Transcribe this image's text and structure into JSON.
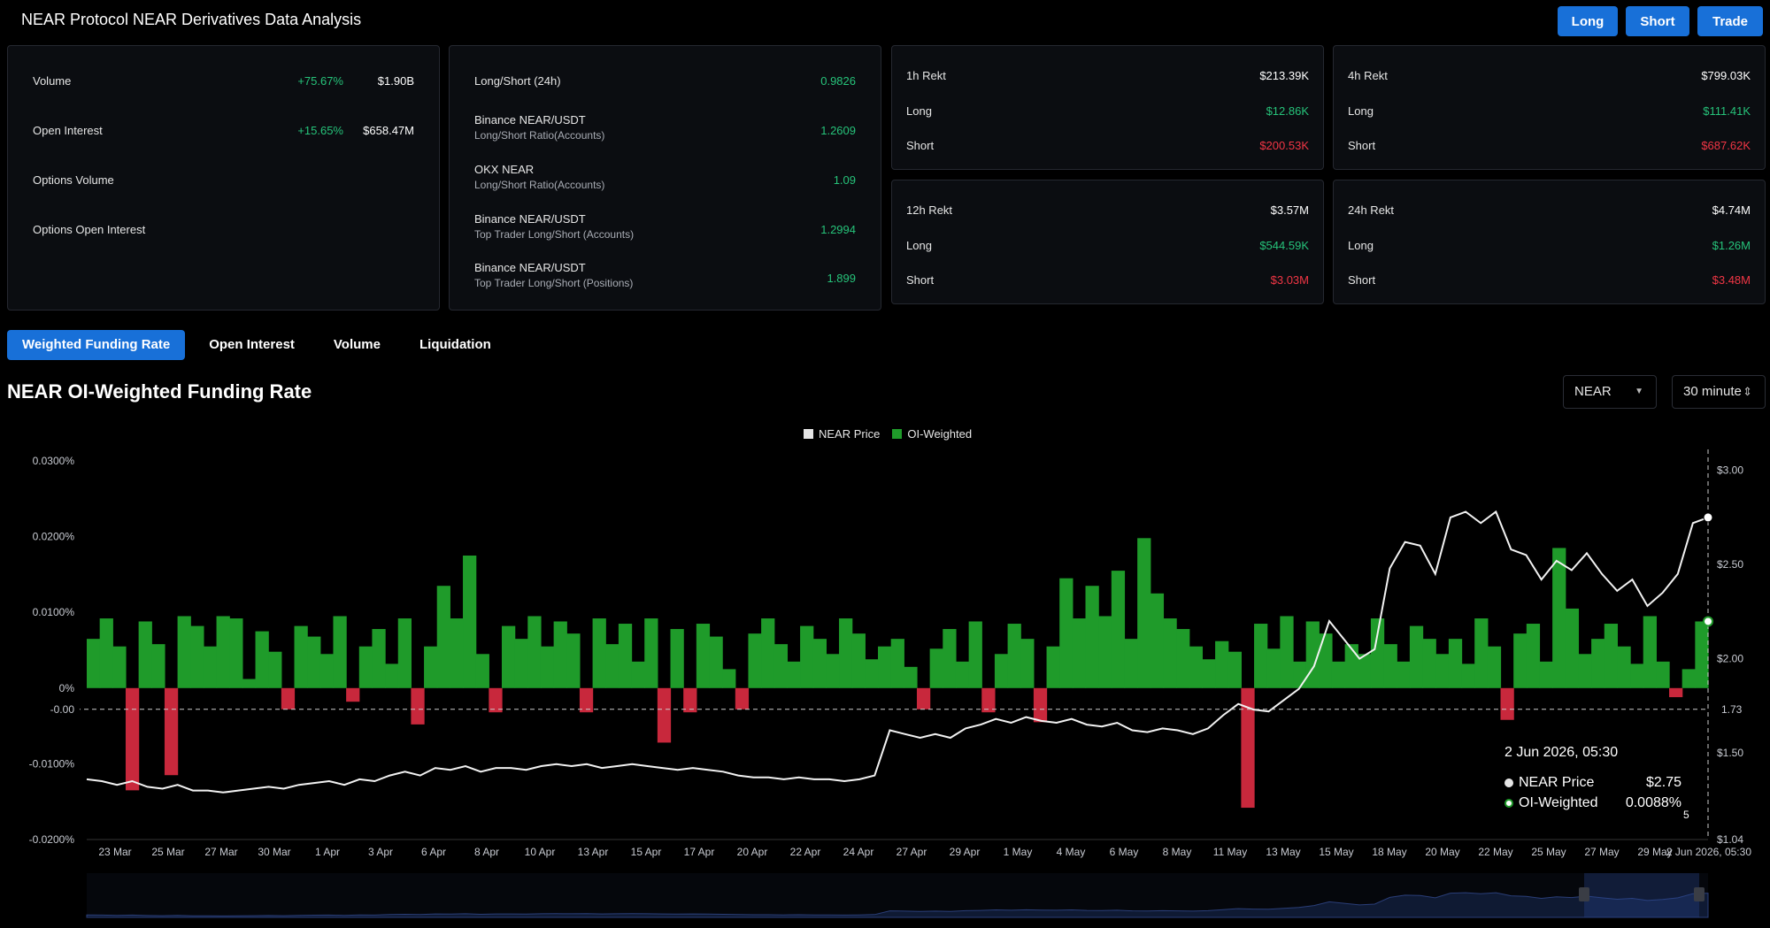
{
  "page": {
    "title": "NEAR Protocol NEAR Derivatives Data Analysis"
  },
  "actions": {
    "long": "Long",
    "short": "Short",
    "trade": "Trade"
  },
  "market": {
    "rows": [
      {
        "label": "Volume",
        "change": "+75.67%",
        "value": "$1.90B"
      },
      {
        "label": "Open Interest",
        "change": "+15.65%",
        "value": "$658.47M"
      },
      {
        "label": "Options Volume",
        "change": "",
        "value": ""
      },
      {
        "label": "Options Open Interest",
        "change": "",
        "value": ""
      }
    ]
  },
  "ratios": {
    "rows": [
      {
        "label": "Long/Short (24h)",
        "sub": "",
        "value": "0.9826"
      },
      {
        "label": "Binance NEAR/USDT",
        "sub": "Long/Short Ratio(Accounts)",
        "value": "1.2609"
      },
      {
        "label": "OKX NEAR",
        "sub": "Long/Short Ratio(Accounts)",
        "value": "1.09"
      },
      {
        "label": "Binance NEAR/USDT",
        "sub": "Top Trader Long/Short (Accounts)",
        "value": "1.2994"
      },
      {
        "label": "Binance NEAR/USDT",
        "sub": "Top Trader Long/Short (Positions)",
        "value": "1.899"
      }
    ]
  },
  "rekt": [
    {
      "title": "1h Rekt",
      "total": "$213.39K",
      "long_label": "Long",
      "long": "$12.86K",
      "short_label": "Short",
      "short": "$200.53K"
    },
    {
      "title": "4h Rekt",
      "total": "$799.03K",
      "long_label": "Long",
      "long": "$111.41K",
      "short_label": "Short",
      "short": "$687.62K"
    },
    {
      "title": "12h Rekt",
      "total": "$3.57M",
      "long_label": "Long",
      "long": "$544.59K",
      "short_label": "Short",
      "short": "$3.03M"
    },
    {
      "title": "24h Rekt",
      "total": "$4.74M",
      "long_label": "Long",
      "long": "$1.26M",
      "short_label": "Short",
      "short": "$3.48M"
    }
  ],
  "tabs": [
    "Weighted Funding Rate",
    "Open Interest",
    "Volume",
    "Liquidation"
  ],
  "chart_title": "NEAR OI-Weighted Funding Rate",
  "controls": {
    "coin": "NEAR",
    "interval": "30 minute"
  },
  "colors": {
    "accent": "#1870d8",
    "positive": "#26c37a",
    "negative": "#f23645",
    "bar_green": "#1f9b2a",
    "bar_red": "#c8283c"
  },
  "icons": {
    "select_arrow": "caret-down-icon",
    "spinner": "updown-icon"
  },
  "crosshair": {
    "left_value": "-0.00",
    "right_value": "1.73"
  },
  "tooltip": {
    "date": "2 Jun 2026, 05:30",
    "price_label": "NEAR Price",
    "price_value": "$2.75",
    "rate_label": "OI-Weighted",
    "rate_value": "0.0088%"
  },
  "stray_text": "5",
  "chart_data": {
    "type": "area",
    "legend": [
      "NEAR Price",
      "OI-Weighted"
    ],
    "legend_position": "top-center",
    "x_labels": [
      "23 Mar",
      "25 Mar",
      "27 Mar",
      "30 Mar",
      "1 Apr",
      "3 Apr",
      "6 Apr",
      "8 Apr",
      "10 Apr",
      "13 Apr",
      "15 Apr",
      "17 Apr",
      "20 Apr",
      "22 Apr",
      "24 Apr",
      "27 Apr",
      "29 Apr",
      "1 May",
      "4 May",
      "6 May",
      "8 May",
      "11 May",
      "13 May",
      "15 May",
      "18 May",
      "20 May",
      "22 May",
      "25 May",
      "27 May",
      "29 May",
      "2 Jun 2026, 05:30"
    ],
    "y_left_ticks": [
      "0.0300%",
      "0.0200%",
      "0.0100%",
      "0%",
      "-0.0100%",
      "-0.0200%"
    ],
    "y_right_ticks": [
      "$3.00",
      "$2.50",
      "$2.00",
      "$1.50",
      "$1.04"
    ],
    "y_left_range": [
      -0.02,
      0.03
    ],
    "y_right_range": [
      1.04,
      3.05
    ],
    "grid": false,
    "series": [
      {
        "name": "OI-Weighted",
        "unit": "%",
        "values": [
          0.0065,
          0.0092,
          0.0055,
          -0.0135,
          0.0088,
          0.0058,
          -0.0115,
          0.0095,
          0.0082,
          0.0055,
          0.0095,
          0.0092,
          0.0012,
          0.0075,
          0.0048,
          -0.0028,
          0.0082,
          0.0068,
          0.0045,
          0.0095,
          -0.0018,
          0.0055,
          0.0078,
          0.0032,
          0.0092,
          -0.0048,
          0.0055,
          0.0135,
          0.0092,
          0.0175,
          0.0045,
          -0.0032,
          0.0082,
          0.0065,
          0.0095,
          0.0055,
          0.0088,
          0.0072,
          -0.0032,
          0.0092,
          0.0058,
          0.0085,
          0.0035,
          0.0092,
          -0.0072,
          0.0078,
          -0.0032,
          0.0085,
          0.0068,
          0.0025,
          -0.0028,
          0.0072,
          0.0092,
          0.0058,
          0.0035,
          0.0082,
          0.0065,
          0.0045,
          0.0092,
          0.0072,
          0.0038,
          0.0055,
          0.0065,
          0.0028,
          -0.0028,
          0.0052,
          0.0078,
          0.0035,
          0.0088,
          -0.0032,
          0.0045,
          0.0085,
          0.0065,
          -0.0045,
          0.0055,
          0.0145,
          0.0092,
          0.0135,
          0.0095,
          0.0155,
          0.0065,
          0.0198,
          0.0125,
          0.0092,
          0.0078,
          0.0055,
          0.0038,
          0.0062,
          0.0048,
          -0.0158,
          0.0085,
          0.0052,
          0.0095,
          0.0035,
          0.0088,
          0.0072,
          0.0035,
          0.0058,
          0.0045,
          0.0092,
          0.0058,
          0.0035,
          0.0082,
          0.0065,
          0.0045,
          0.0065,
          0.0032,
          0.0092,
          0.0055,
          -0.0042,
          0.0072,
          0.0085,
          0.0035,
          0.0185,
          0.0105,
          0.0045,
          0.0065,
          0.0085,
          0.0055,
          0.0032,
          0.0095,
          0.0035,
          -0.0012,
          0.0025,
          0.0088
        ]
      },
      {
        "name": "NEAR Price",
        "unit": "$",
        "values": [
          1.36,
          1.35,
          1.33,
          1.35,
          1.32,
          1.31,
          1.33,
          1.3,
          1.3,
          1.29,
          1.3,
          1.31,
          1.32,
          1.31,
          1.33,
          1.34,
          1.35,
          1.33,
          1.36,
          1.35,
          1.38,
          1.4,
          1.38,
          1.42,
          1.41,
          1.43,
          1.4,
          1.42,
          1.42,
          1.41,
          1.43,
          1.44,
          1.43,
          1.44,
          1.42,
          1.43,
          1.44,
          1.43,
          1.42,
          1.41,
          1.42,
          1.41,
          1.4,
          1.38,
          1.37,
          1.37,
          1.36,
          1.37,
          1.36,
          1.36,
          1.35,
          1.36,
          1.38,
          1.62,
          1.6,
          1.58,
          1.6,
          1.58,
          1.63,
          1.65,
          1.68,
          1.66,
          1.69,
          1.67,
          1.66,
          1.68,
          1.65,
          1.64,
          1.66,
          1.62,
          1.61,
          1.63,
          1.62,
          1.6,
          1.63,
          1.7,
          1.76,
          1.73,
          1.72,
          1.78,
          1.84,
          1.96,
          2.2,
          2.1,
          2.0,
          2.05,
          2.48,
          2.62,
          2.6,
          2.45,
          2.75,
          2.78,
          2.72,
          2.78,
          2.58,
          2.55,
          2.42,
          2.52,
          2.47,
          2.56,
          2.45,
          2.36,
          2.42,
          2.28,
          2.35,
          2.45,
          2.72,
          2.75
        ]
      }
    ],
    "navigator": true
  }
}
